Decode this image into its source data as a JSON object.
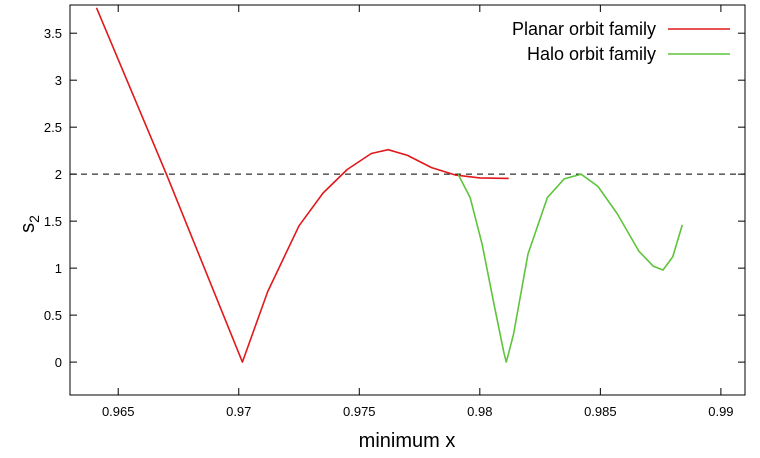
{
  "chart_data": {
    "type": "line",
    "xlabel": "minimum x",
    "ylabel_base": "s",
    "ylabel_sub": "2",
    "xlim": [
      0.963,
      0.991
    ],
    "ylim": [
      -0.35,
      3.8
    ],
    "x_ticks": [
      0.965,
      0.97,
      0.975,
      0.98,
      0.985,
      0.99
    ],
    "x_tick_labels": [
      "0.965",
      "0.97",
      "0.975",
      "0.98",
      "0.985",
      "0.99"
    ],
    "y_ticks": [
      0,
      0.5,
      1,
      1.5,
      2,
      2.5,
      3,
      3.5
    ],
    "y_tick_labels": [
      "0",
      "0.5",
      "1",
      "1.5",
      "2",
      "2.5",
      "3",
      "3.5"
    ],
    "grid": false,
    "legend_position": "top-right",
    "reference_line": {
      "y": 2,
      "style": "dashed",
      "color": "#000000"
    },
    "series": [
      {
        "name": "Planar orbit family",
        "color": "#e0191c",
        "x": [
          0.9641,
          0.967,
          0.97015,
          0.9712,
          0.9725,
          0.9735,
          0.9745,
          0.9755,
          0.9762,
          0.977,
          0.978,
          0.979,
          0.98,
          0.9812
        ],
        "y": [
          3.77,
          2.0,
          0.0,
          0.75,
          1.45,
          1.8,
          2.05,
          2.22,
          2.26,
          2.2,
          2.07,
          1.99,
          1.96,
          1.955
        ]
      },
      {
        "name": "Halo orbit family",
        "color": "#5ec43c",
        "x": [
          0.9791,
          0.9796,
          0.9801,
          0.9806,
          0.981,
          0.9811,
          0.9814,
          0.982,
          0.9828,
          0.9835,
          0.9842,
          0.9849,
          0.9857,
          0.9866,
          0.9872,
          0.9876,
          0.988,
          0.9884
        ],
        "y": [
          2.0,
          1.75,
          1.25,
          0.6,
          0.1,
          0.0,
          0.3,
          1.15,
          1.75,
          1.95,
          2.0,
          1.87,
          1.58,
          1.18,
          1.02,
          0.98,
          1.12,
          1.46
        ]
      }
    ]
  }
}
